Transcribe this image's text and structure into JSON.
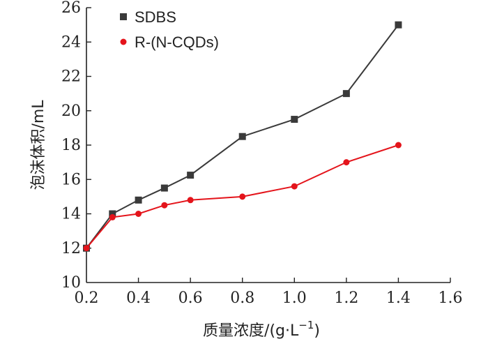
{
  "chart_data": {
    "type": "line",
    "xlabel": "质量浓度/(g·L",
    "xlabel_sup": "−1",
    "xlabel_tail": ")",
    "ylabel": "泡沫体积/mL",
    "xlim": [
      0.2,
      1.6
    ],
    "ylim": [
      10,
      26
    ],
    "xticks": [
      "0.2",
      "0.4",
      "0.6",
      "0.8",
      "1.0",
      "1.2",
      "1.4",
      "1.6"
    ],
    "xtick_values": [
      0.2,
      0.4,
      0.6,
      0.8,
      1.0,
      1.2,
      1.4,
      1.6
    ],
    "yticks": [
      "10",
      "12",
      "14",
      "16",
      "18",
      "20",
      "22",
      "24",
      "26"
    ],
    "ytick_values": [
      10,
      12,
      14,
      16,
      18,
      20,
      22,
      24,
      26
    ],
    "grid": false,
    "legend_position": "top-left",
    "series": [
      {
        "name": "SDBS",
        "marker": "square",
        "color": "#3a3a3a",
        "x": [
          0.2,
          0.3,
          0.4,
          0.5,
          0.6,
          0.8,
          1.0,
          1.2,
          1.4
        ],
        "y": [
          12.0,
          14.0,
          14.8,
          15.5,
          16.25,
          18.5,
          19.5,
          21.0,
          25.0
        ]
      },
      {
        "name": "R-(N-CQDs)",
        "marker": "circle",
        "color": "#e4141b",
        "x": [
          0.2,
          0.3,
          0.4,
          0.5,
          0.6,
          0.8,
          1.0,
          1.2,
          1.4
        ],
        "y": [
          12.0,
          13.8,
          14.0,
          14.5,
          14.8,
          15.0,
          15.6,
          17.0,
          18.0
        ]
      }
    ]
  }
}
